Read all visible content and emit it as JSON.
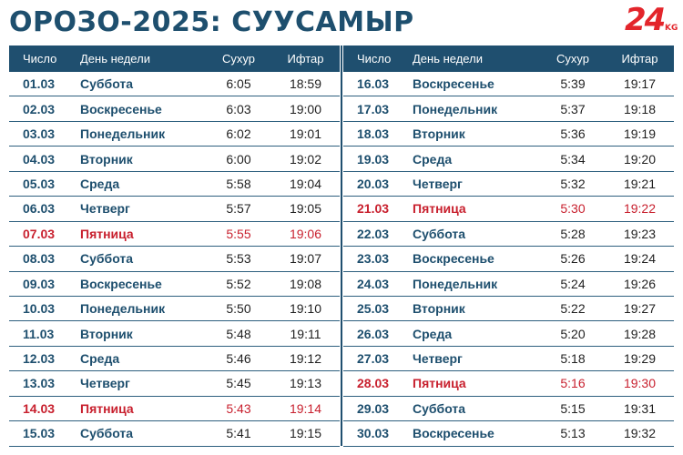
{
  "title": "ОРОЗО-2025: СУУСАМЫР",
  "logo": {
    "main": "24",
    "sub": "KG"
  },
  "colors": {
    "header_bg": "#1f4f6f",
    "text": "#1e4f6e",
    "highlight": "#c8202e",
    "logo": "#e3252b"
  },
  "table": {
    "headers": [
      "Число",
      "День недели",
      "Сухур",
      "Ифтар"
    ],
    "left": [
      {
        "date": "01.03",
        "day": "Суббота",
        "suhur": "6:05",
        "iftar": "18:59",
        "friday": false
      },
      {
        "date": "02.03",
        "day": "Воскресенье",
        "suhur": "6:03",
        "iftar": "19:00",
        "friday": false
      },
      {
        "date": "03.03",
        "day": "Понедельник",
        "suhur": "6:02",
        "iftar": "19:01",
        "friday": false
      },
      {
        "date": "04.03",
        "day": "Вторник",
        "suhur": "6:00",
        "iftar": "19:02",
        "friday": false
      },
      {
        "date": "05.03",
        "day": "Среда",
        "suhur": "5:58",
        "iftar": "19:04",
        "friday": false
      },
      {
        "date": "06.03",
        "day": "Четверг",
        "suhur": "5:57",
        "iftar": "19:05",
        "friday": false
      },
      {
        "date": "07.03",
        "day": "Пятница",
        "suhur": "5:55",
        "iftar": "19:06",
        "friday": true
      },
      {
        "date": "08.03",
        "day": "Суббота",
        "suhur": "5:53",
        "iftar": "19:07",
        "friday": false
      },
      {
        "date": "09.03",
        "day": "Воскресенье",
        "suhur": "5:52",
        "iftar": "19:08",
        "friday": false
      },
      {
        "date": "10.03",
        "day": "Понедельник",
        "suhur": "5:50",
        "iftar": "19:10",
        "friday": false
      },
      {
        "date": "11.03",
        "day": "Вторник",
        "suhur": "5:48",
        "iftar": "19:11",
        "friday": false
      },
      {
        "date": "12.03",
        "day": "Среда",
        "suhur": "5:46",
        "iftar": "19:12",
        "friday": false
      },
      {
        "date": "13.03",
        "day": "Четверг",
        "suhur": "5:45",
        "iftar": "19:13",
        "friday": false
      },
      {
        "date": "14.03",
        "day": "Пятница",
        "suhur": "5:43",
        "iftar": "19:14",
        "friday": true
      },
      {
        "date": "15.03",
        "day": "Суббота",
        "suhur": "5:41",
        "iftar": "19:15",
        "friday": false
      }
    ],
    "right": [
      {
        "date": "16.03",
        "day": "Воскресенье",
        "suhur": "5:39",
        "iftar": "19:17",
        "friday": false
      },
      {
        "date": "17.03",
        "day": "Понедельник",
        "suhur": "5:37",
        "iftar": "19:18",
        "friday": false
      },
      {
        "date": "18.03",
        "day": "Вторник",
        "suhur": "5:36",
        "iftar": "19:19",
        "friday": false
      },
      {
        "date": "19.03",
        "day": "Среда",
        "suhur": "5:34",
        "iftar": "19:20",
        "friday": false
      },
      {
        "date": "20.03",
        "day": "Четверг",
        "suhur": "5:32",
        "iftar": "19:21",
        "friday": false
      },
      {
        "date": "21.03",
        "day": "Пятница",
        "suhur": "5:30",
        "iftar": "19:22",
        "friday": true
      },
      {
        "date": "22.03",
        "day": "Суббота",
        "suhur": "5:28",
        "iftar": "19:23",
        "friday": false
      },
      {
        "date": "23.03",
        "day": "Воскресенье",
        "suhur": "5:26",
        "iftar": "19:24",
        "friday": false
      },
      {
        "date": "24.03",
        "day": "Понедельник",
        "suhur": "5:24",
        "iftar": "19:26",
        "friday": false
      },
      {
        "date": "25.03",
        "day": "Вторник",
        "suhur": "5:22",
        "iftar": "19:27",
        "friday": false
      },
      {
        "date": "26.03",
        "day": "Среда",
        "suhur": "5:20",
        "iftar": "19:28",
        "friday": false
      },
      {
        "date": "27.03",
        "day": "Четверг",
        "suhur": "5:18",
        "iftar": "19:29",
        "friday": false
      },
      {
        "date": "28.03",
        "day": "Пятница",
        "suhur": "5:16",
        "iftar": "19:30",
        "friday": true
      },
      {
        "date": "29.03",
        "day": "Суббота",
        "suhur": "5:15",
        "iftar": "19:31",
        "friday": false
      },
      {
        "date": "30.03",
        "day": "Воскресенье",
        "suhur": "5:13",
        "iftar": "19:32",
        "friday": false
      }
    ]
  }
}
